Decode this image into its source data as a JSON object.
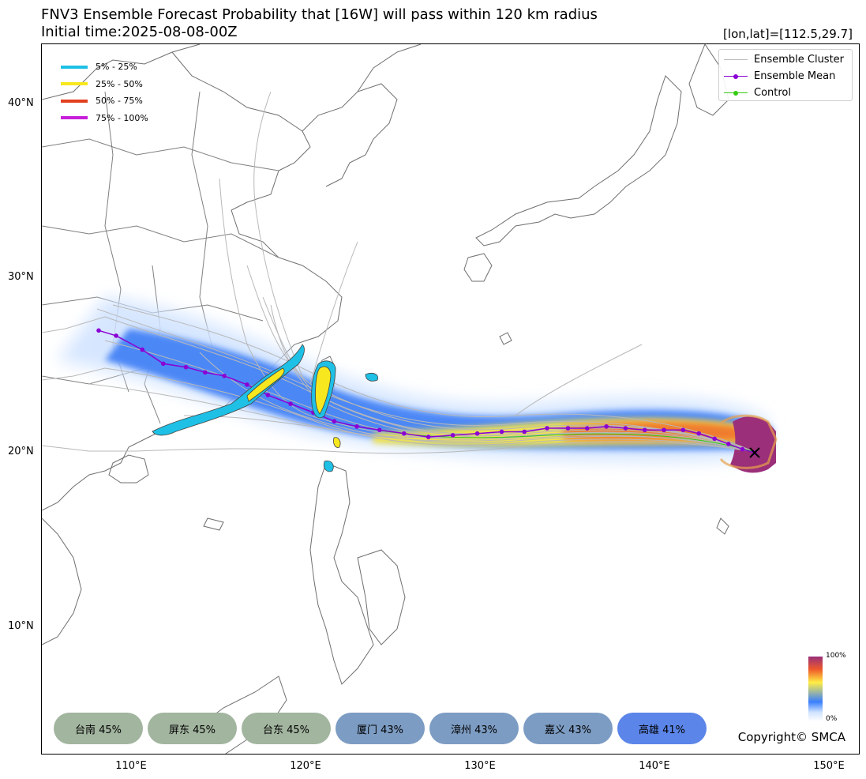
{
  "title_line1": "FNV3 Ensemble Forecast Probability that [16W] will pass within 120 km radius",
  "title_line2": "Initial time:2025-08-08-00Z",
  "coord_readout": "[lon,lat]=[112.5,29.7]",
  "lat_labels": [
    "40°N",
    "30°N",
    "20°N",
    "10°N"
  ],
  "lon_labels": [
    "110°E",
    "120°E",
    "130°E",
    "140°E",
    "150°E"
  ],
  "prob_legend": [
    {
      "label": "5% - 25%",
      "color": "#1ec0e6"
    },
    {
      "label": "25% - 50%",
      "color": "#f7e71e"
    },
    {
      "label": "50% - 75%",
      "color": "#e2401f"
    },
    {
      "label": "75% - 100%",
      "color": "#c71ed9"
    }
  ],
  "track_legend": [
    {
      "label": "Ensemble Cluster",
      "color": "#bbbbbb",
      "marker": false
    },
    {
      "label": "Ensemble Mean",
      "color": "#8a00d4",
      "marker": true
    },
    {
      "label": "Control",
      "color": "#33cc11",
      "marker": true
    }
  ],
  "city_probabilities": [
    {
      "name": "台南 45%",
      "color": "#a2b59f"
    },
    {
      "name": "屏东 45%",
      "color": "#a2b59f"
    },
    {
      "name": "台东 45%",
      "color": "#a2b59f"
    },
    {
      "name": "厦门 43%",
      "color": "#7c9cc3"
    },
    {
      "name": "漳州 43%",
      "color": "#7c9cc3"
    },
    {
      "name": "嘉义 43%",
      "color": "#7c9cc3"
    },
    {
      "name": "高雄 41%",
      "color": "#5b85e8"
    }
  ],
  "colorbar": {
    "max_label": "100%",
    "min_label": "0%"
  },
  "copyright": "Copyright© SMCA",
  "ensemble_mean_track": [
    [
      145.7,
      20.0
    ],
    [
      145.0,
      20.2
    ],
    [
      144.2,
      20.5
    ],
    [
      143.4,
      20.8
    ],
    [
      142.5,
      21.1
    ],
    [
      141.6,
      21.3
    ],
    [
      140.5,
      21.3
    ],
    [
      139.4,
      21.3
    ],
    [
      138.3,
      21.4
    ],
    [
      137.2,
      21.5
    ],
    [
      136.1,
      21.4
    ],
    [
      135.0,
      21.4
    ],
    [
      133.8,
      21.4
    ],
    [
      132.5,
      21.2
    ],
    [
      131.2,
      21.2
    ],
    [
      129.8,
      21.1
    ],
    [
      128.4,
      21.0
    ],
    [
      127.0,
      20.9
    ],
    [
      125.6,
      21.1
    ],
    [
      124.2,
      21.3
    ],
    [
      122.9,
      21.5
    ],
    [
      121.6,
      21.8
    ],
    [
      120.4,
      22.3
    ],
    [
      119.1,
      22.8
    ],
    [
      117.8,
      23.3
    ],
    [
      116.6,
      23.9
    ],
    [
      115.3,
      24.4
    ],
    [
      114.2,
      24.6
    ],
    [
      113.1,
      24.9
    ],
    [
      111.8,
      25.1
    ],
    [
      110.6,
      25.9
    ],
    [
      109.1,
      26.7
    ],
    [
      108.1,
      27.0
    ]
  ],
  "storm_position": [
    145.7,
    20.0
  ]
}
